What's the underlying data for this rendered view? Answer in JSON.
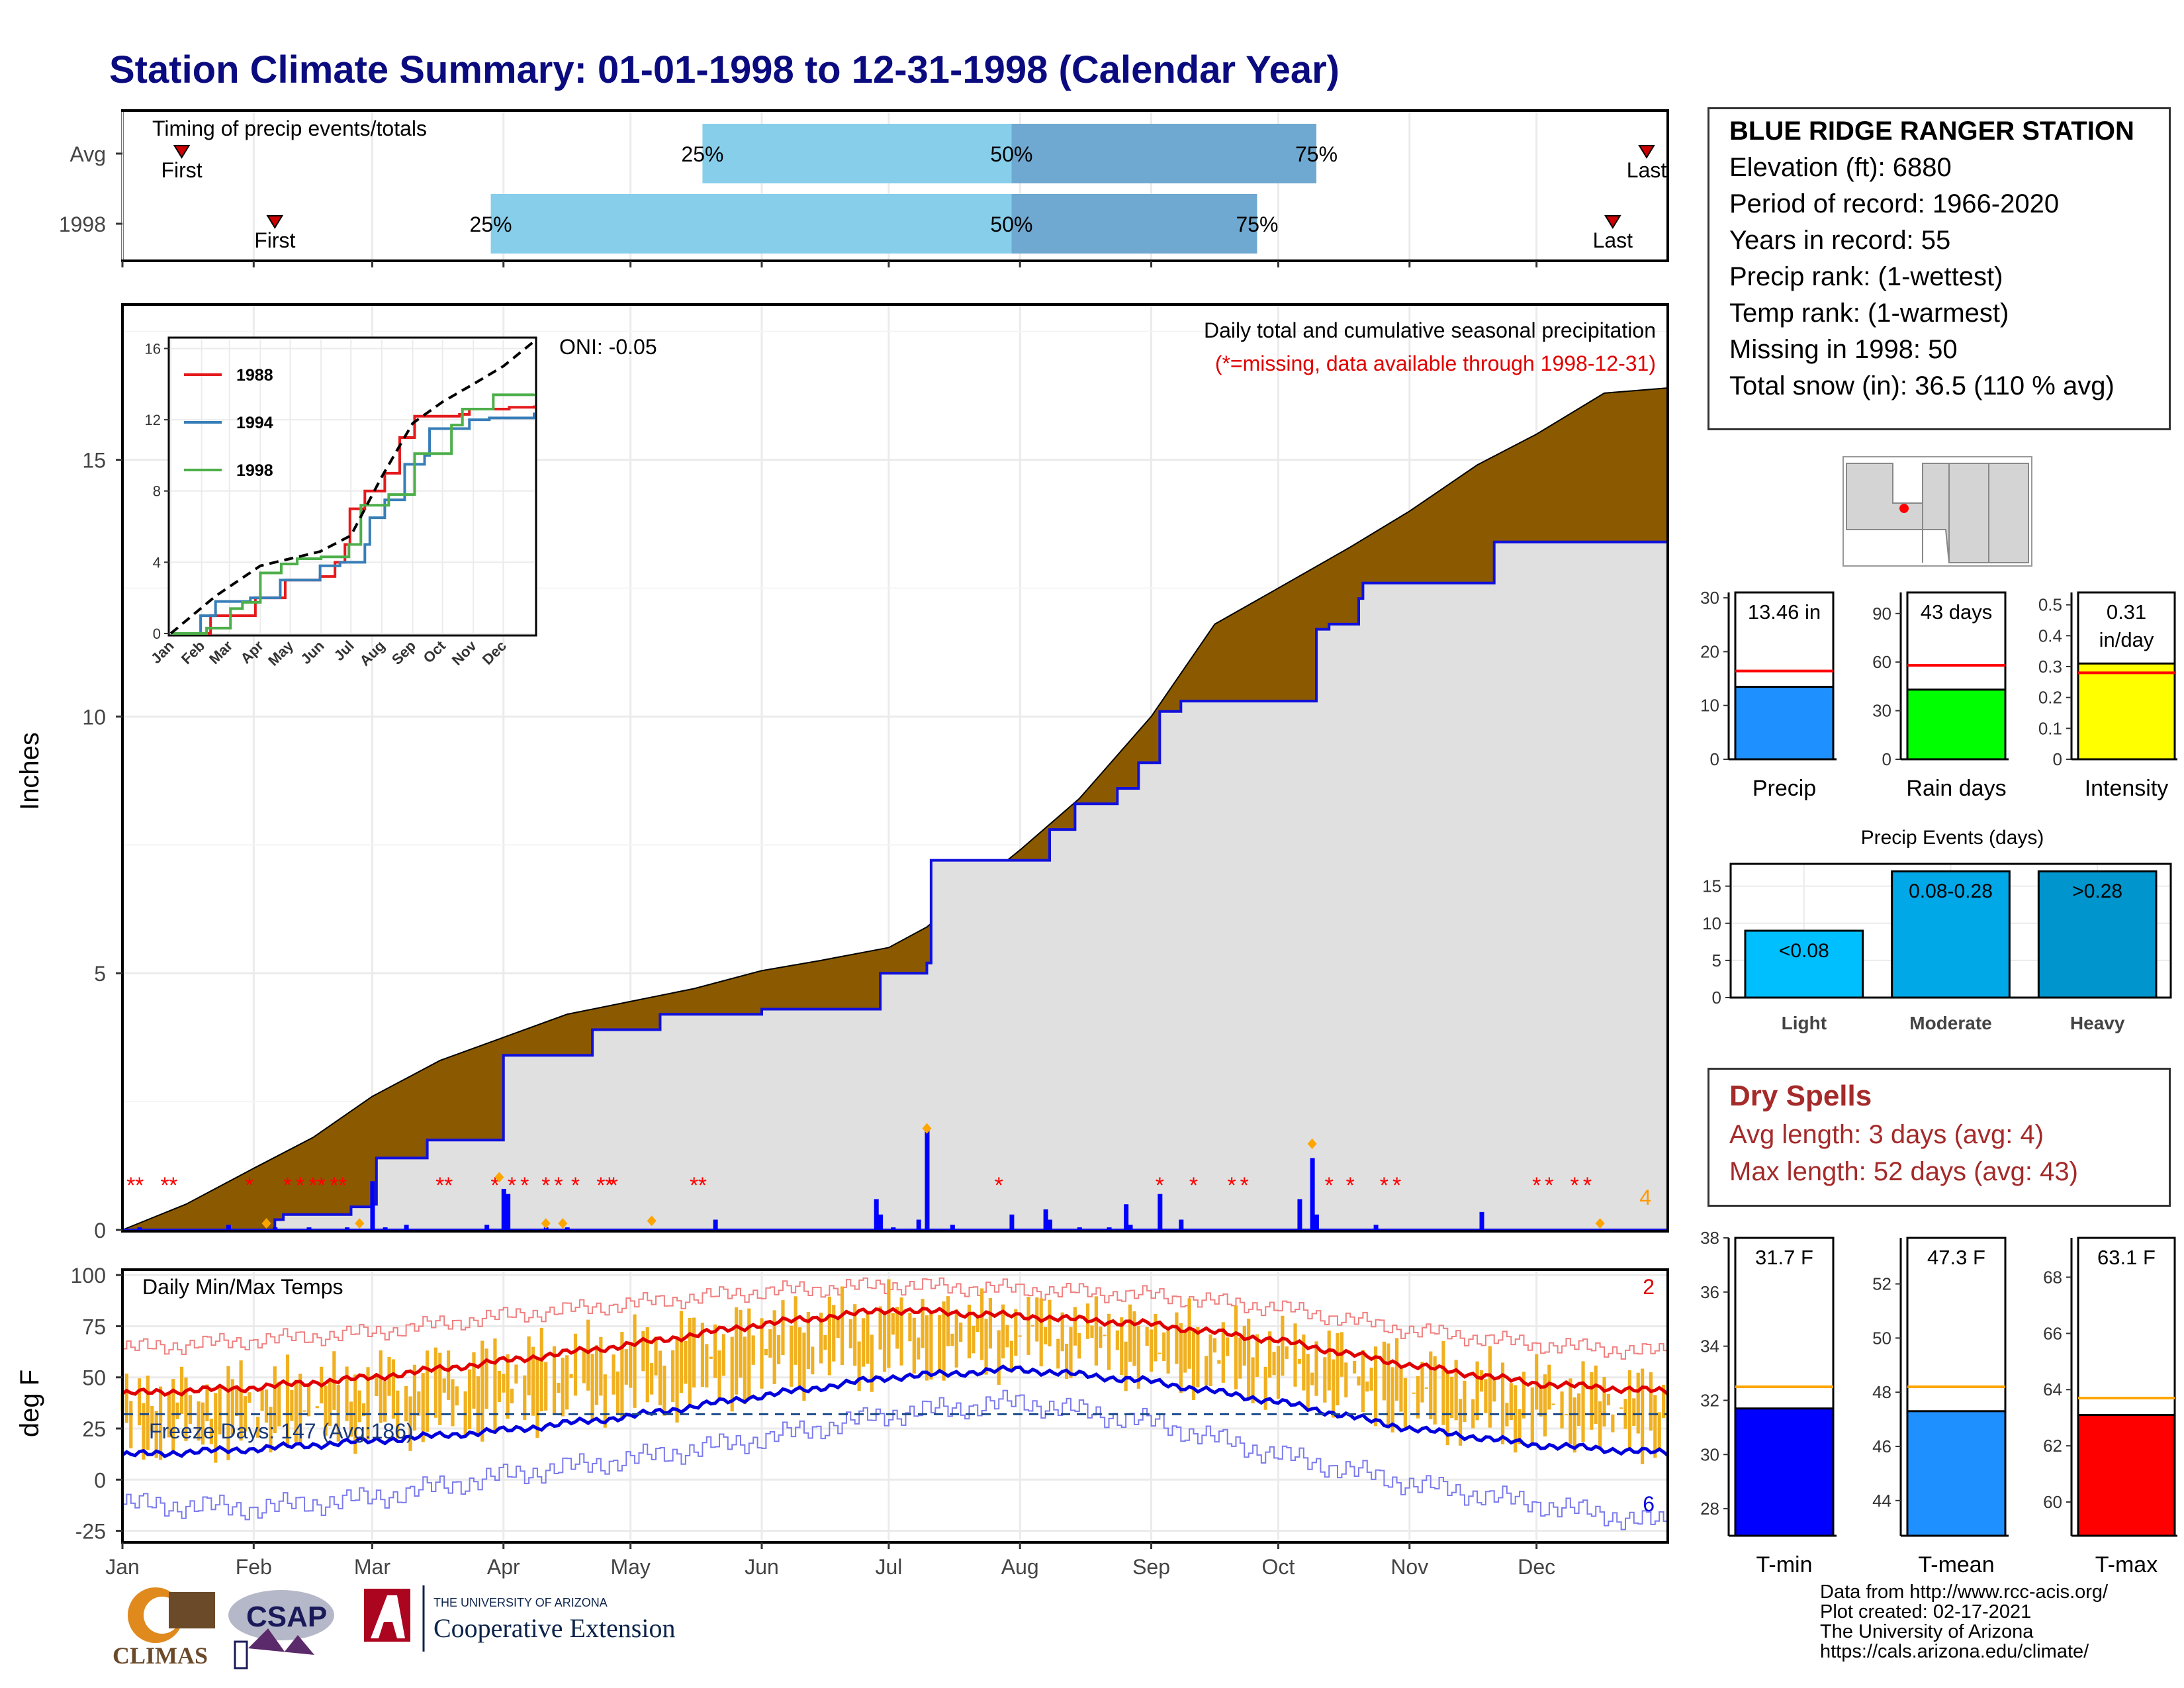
{
  "title": "Station Climate Summary: 01-01-1998 to 12-31-1998 (Calendar Year)",
  "timing": {
    "heading": "Timing of precip events/totals",
    "rows": [
      {
        "label": "Avg",
        "first_doy": 14,
        "last_doy": 360,
        "p25_doy": 137,
        "p50_doy": 210,
        "p75_doy": 282,
        "first_label": "First",
        "last_label": "Last",
        "p25_label": "25%",
        "p50_label": "50%",
        "p75_label": "75%"
      },
      {
        "label": "1998",
        "first_doy": 36,
        "last_doy": 352,
        "p25_doy": 87,
        "p50_doy": 210,
        "p75_doy": 268,
        "first_label": "First",
        "last_label": "Last",
        "p25_label": "25%",
        "p50_label": "50%",
        "p75_label": "75%"
      }
    ],
    "colors": {
      "q1": "#87ceeb",
      "q2": "#6fa8d0",
      "marker": "#cc0000"
    }
  },
  "site": {
    "name": "BLUE RIDGE RANGER STATION",
    "lines": [
      "Elevation (ft): 6880",
      "Period of record: 1966-2020",
      "Years in record: 55",
      "Precip rank:  (1-wettest)",
      "Temp rank:  (1-warmest)",
      "Missing in 1998: 50",
      "Total snow (in): 36.5 (110 % avg)"
    ]
  },
  "months": [
    "Jan",
    "Feb",
    "Mar",
    "Apr",
    "May",
    "Jun",
    "Jul",
    "Aug",
    "Sep",
    "Oct",
    "Nov",
    "Dec"
  ],
  "precip_chart": {
    "type": "area",
    "ylabel": "Inches",
    "yticks": [
      0,
      5,
      10,
      15
    ],
    "ylim": [
      0,
      18
    ],
    "note1": "Daily total and cumulative seasonal precipitation",
    "note2": "(*=missing, data available through 1998-12-31)",
    "oni": "ONI: -0.05",
    "corner_count": "4",
    "avg_cumulative": [
      [
        0,
        0
      ],
      [
        15,
        0.5
      ],
      [
        31,
        1.2
      ],
      [
        45,
        1.8
      ],
      [
        59,
        2.6
      ],
      [
        75,
        3.3
      ],
      [
        90,
        3.75
      ],
      [
        105,
        4.2
      ],
      [
        120,
        4.45
      ],
      [
        135,
        4.7
      ],
      [
        151,
        5.05
      ],
      [
        165,
        5.25
      ],
      [
        181,
        5.5
      ],
      [
        190,
        5.9
      ],
      [
        200,
        6.6
      ],
      [
        212,
        7.4
      ],
      [
        226,
        8.4
      ],
      [
        243,
        10.0
      ],
      [
        258,
        11.8
      ],
      [
        273,
        12.5
      ],
      [
        290,
        13.3
      ],
      [
        304,
        14.0
      ],
      [
        320,
        14.9
      ],
      [
        334,
        15.5
      ],
      [
        350,
        16.3
      ],
      [
        365,
        16.4
      ]
    ],
    "obs_cumulative": [
      [
        0,
        0
      ],
      [
        36,
        0.2
      ],
      [
        38,
        0.3
      ],
      [
        53,
        0.3
      ],
      [
        54,
        0.45
      ],
      [
        59,
        0.5
      ],
      [
        60,
        1.4
      ],
      [
        71,
        1.4
      ],
      [
        72,
        1.75
      ],
      [
        89,
        1.75
      ],
      [
        90,
        3.4
      ],
      [
        110,
        3.4
      ],
      [
        111,
        3.9
      ],
      [
        126,
        3.9
      ],
      [
        127,
        4.2
      ],
      [
        150,
        4.2
      ],
      [
        151,
        4.3
      ],
      [
        178,
        4.3
      ],
      [
        179,
        5.0
      ],
      [
        190,
        5.2
      ],
      [
        191,
        7.2
      ],
      [
        218,
        7.2
      ],
      [
        219,
        7.8
      ],
      [
        225,
        8.3
      ],
      [
        235,
        8.6
      ],
      [
        240,
        9.1
      ],
      [
        245,
        10.1
      ],
      [
        250,
        10.3
      ],
      [
        281,
        10.3
      ],
      [
        282,
        11.7
      ],
      [
        285,
        11.8
      ],
      [
        292,
        12.3
      ],
      [
        293,
        12.6
      ],
      [
        323,
        12.6
      ],
      [
        324,
        13.4
      ],
      [
        365,
        13.46
      ]
    ],
    "daily_bars": [
      [
        4,
        0.05
      ],
      [
        25,
        0.1
      ],
      [
        36,
        0.05
      ],
      [
        44,
        0.05
      ],
      [
        53,
        0.05
      ],
      [
        59,
        0.95
      ],
      [
        62,
        0.05
      ],
      [
        67,
        0.1
      ],
      [
        86,
        0.1
      ],
      [
        90,
        0.8
      ],
      [
        91,
        0.7
      ],
      [
        100,
        0.05
      ],
      [
        105,
        0.05
      ],
      [
        140,
        0.2
      ],
      [
        178,
        0.6
      ],
      [
        179,
        0.3
      ],
      [
        182,
        0.05
      ],
      [
        188,
        0.2
      ],
      [
        190,
        2.0
      ],
      [
        196,
        0.1
      ],
      [
        210,
        0.3
      ],
      [
        218,
        0.4
      ],
      [
        219,
        0.2
      ],
      [
        226,
        0.05
      ],
      [
        233,
        0.05
      ],
      [
        237,
        0.5
      ],
      [
        238,
        0.1
      ],
      [
        245,
        0.7
      ],
      [
        250,
        0.2
      ],
      [
        278,
        0.6
      ],
      [
        281,
        1.4
      ],
      [
        282,
        0.3
      ],
      [
        296,
        0.1
      ],
      [
        321,
        0.35
      ]
    ],
    "missing_days": [
      2,
      4,
      10,
      12,
      30,
      39,
      42,
      45,
      47,
      50,
      52,
      75,
      77,
      88,
      92,
      95,
      100,
      103,
      107,
      113,
      115,
      116,
      135,
      137,
      207,
      245,
      253,
      262,
      265,
      285,
      290,
      298,
      301,
      334,
      337,
      343,
      346
    ],
    "snow_markers": [
      [
        34,
        0.05
      ],
      [
        56,
        0.05
      ],
      [
        89,
        0.95
      ],
      [
        100,
        0.05
      ],
      [
        104,
        0.05
      ],
      [
        125,
        0.1
      ],
      [
        190,
        1.9
      ],
      [
        281,
        1.6
      ],
      [
        349,
        0.05
      ]
    ],
    "inset": {
      "yticks": [
        0,
        4,
        8,
        12,
        16
      ],
      "series": [
        {
          "name": "1988",
          "color": "#e41a1c",
          "values": [
            [
              0,
              0
            ],
            [
              40,
              1
            ],
            [
              75,
              1
            ],
            [
              85,
              2
            ],
            [
              115,
              3
            ],
            [
              150,
              3.2
            ],
            [
              165,
              4
            ],
            [
              175,
              5
            ],
            [
              180,
              7
            ],
            [
              195,
              8
            ],
            [
              215,
              9
            ],
            [
              230,
              11
            ],
            [
              245,
              12.2
            ],
            [
              290,
              12.3
            ],
            [
              300,
              12.6
            ],
            [
              340,
              12.7
            ],
            [
              365,
              12.8
            ]
          ]
        },
        {
          "name": "1994",
          "color": "#377eb8",
          "values": [
            [
              0,
              0
            ],
            [
              30,
              1
            ],
            [
              45,
              1.8
            ],
            [
              80,
              2
            ],
            [
              110,
              3
            ],
            [
              150,
              3.8
            ],
            [
              170,
              4
            ],
            [
              195,
              5
            ],
            [
              200,
              6.5
            ],
            [
              215,
              7.5
            ],
            [
              235,
              9.5
            ],
            [
              255,
              10
            ],
            [
              260,
              11.5
            ],
            [
              300,
              12
            ],
            [
              320,
              12.1
            ],
            [
              365,
              12.4
            ]
          ]
        },
        {
          "name": "1998",
          "color": "#4daf4a",
          "values": [
            [
              0,
              0
            ],
            [
              36,
              0.3
            ],
            [
              60,
              1.4
            ],
            [
              72,
              1.75
            ],
            [
              90,
              3.4
            ],
            [
              111,
              3.9
            ],
            [
              127,
              4.2
            ],
            [
              151,
              4.3
            ],
            [
              179,
              5
            ],
            [
              191,
              7.2
            ],
            [
              219,
              7.8
            ],
            [
              245,
              10.1
            ],
            [
              282,
              11.7
            ],
            [
              293,
              12.6
            ],
            [
              324,
              13.4
            ],
            [
              365,
              13.46
            ]
          ]
        }
      ],
      "avg_values": [
        [
          0,
          0
        ],
        [
          45,
          2.1
        ],
        [
          90,
          3.8
        ],
        [
          150,
          4.6
        ],
        [
          181,
          5.5
        ],
        [
          212,
          8.8
        ],
        [
          243,
          11.8
        ],
        [
          273,
          13
        ],
        [
          304,
          14
        ],
        [
          334,
          15
        ],
        [
          365,
          16.4
        ]
      ]
    }
  },
  "temp_chart": {
    "type": "line",
    "ylabel": "deg F",
    "label": "Daily Min/Max Temps",
    "yticks": [
      -25,
      0,
      25,
      50,
      75,
      100
    ],
    "ylim": [
      -30,
      102
    ],
    "freeze_label": "Freeze Days: 147 (Avg:186)",
    "freeze_line": 32,
    "record_high_count": "2",
    "record_low_count": "6",
    "avg_max_pts": [
      [
        0,
        42
      ],
      [
        31,
        45
      ],
      [
        59,
        50
      ],
      [
        90,
        58
      ],
      [
        120,
        66
      ],
      [
        151,
        76
      ],
      [
        181,
        83
      ],
      [
        212,
        80
      ],
      [
        243,
        76
      ],
      [
        273,
        68
      ],
      [
        304,
        56
      ],
      [
        334,
        47
      ],
      [
        365,
        43
      ]
    ],
    "avg_min_pts": [
      [
        0,
        12
      ],
      [
        31,
        15
      ],
      [
        59,
        19
      ],
      [
        90,
        24
      ],
      [
        120,
        31
      ],
      [
        151,
        41
      ],
      [
        181,
        50
      ],
      [
        212,
        54
      ],
      [
        243,
        48
      ],
      [
        273,
        38
      ],
      [
        304,
        25
      ],
      [
        334,
        17
      ],
      [
        365,
        13
      ]
    ],
    "rec_max_pts": [
      [
        0,
        64
      ],
      [
        31,
        68
      ],
      [
        59,
        72
      ],
      [
        90,
        80
      ],
      [
        120,
        86
      ],
      [
        151,
        92
      ],
      [
        181,
        95
      ],
      [
        212,
        93
      ],
      [
        243,
        90
      ],
      [
        273,
        84
      ],
      [
        304,
        73
      ],
      [
        334,
        66
      ],
      [
        365,
        62
      ]
    ],
    "rec_min_pts": [
      [
        0,
        -12
      ],
      [
        31,
        -14
      ],
      [
        59,
        -9
      ],
      [
        90,
        2
      ],
      [
        120,
        10
      ],
      [
        151,
        20
      ],
      [
        181,
        32
      ],
      [
        212,
        38
      ],
      [
        243,
        28
      ],
      [
        273,
        12
      ],
      [
        304,
        -2
      ],
      [
        334,
        -12
      ],
      [
        365,
        -22
      ]
    ]
  },
  "small_bars": {
    "precip": {
      "label": "Precip",
      "value": 13.46,
      "value_label": "13.46 in",
      "avg": 16.4,
      "yticks": [
        0,
        10,
        20,
        30
      ],
      "ylim": [
        0,
        31
      ],
      "color": "#1e90ff"
    },
    "raindays": {
      "label": "Rain days",
      "value": 43,
      "value_label": "43 days",
      "avg": 58,
      "yticks": [
        0,
        30,
        60,
        90
      ],
      "ylim": [
        0,
        103
      ],
      "color": "#00ff00"
    },
    "intensity": {
      "label": "Intensity",
      "value": 0.31,
      "value_label": "0.31",
      "value_unit": "in/day",
      "avg": 0.28,
      "yticks": [
        0.0,
        0.1,
        0.2,
        0.3,
        0.4,
        0.5
      ],
      "ylim": [
        0,
        0.54
      ],
      "color": "#ffff00"
    }
  },
  "events": {
    "title": "Precip Events (days)",
    "yticks": [
      0,
      5,
      10,
      15
    ],
    "ylim": [
      0,
      18
    ],
    "categories": [
      "Light",
      "Moderate",
      "Heavy"
    ],
    "values": [
      9,
      17,
      17
    ],
    "value_labels": [
      "<0.08",
      "0.08-0.28",
      ">0.28"
    ],
    "colors": [
      "#00bfff",
      "#00a8e8",
      "#0095cc"
    ]
  },
  "dry_spells": {
    "title": "Dry Spells",
    "avg_length": "Avg length: 3 days (avg: 4)",
    "max_length": "Max length: 52 days (avg: 43)"
  },
  "temp_bars": {
    "tmin": {
      "label": "T-min",
      "value": 31.7,
      "value_label": "31.7 F",
      "avg": 32.5,
      "yticks": [
        28,
        30,
        32,
        34,
        36,
        38
      ],
      "ylim": [
        27,
        38
      ],
      "color": "#0000ff"
    },
    "tmean": {
      "label": "T-mean",
      "value": 47.3,
      "value_label": "47.3 F",
      "avg": 48.2,
      "yticks": [
        44,
        46,
        48,
        50,
        52
      ],
      "ylim": [
        42.7,
        53.7
      ],
      "color": "#1e90ff"
    },
    "tmax": {
      "label": "T-max",
      "value": 63.1,
      "value_label": "63.1 F",
      "avg": 63.7,
      "yticks": [
        60,
        62,
        64,
        66,
        68
      ],
      "ylim": [
        58.8,
        69.4
      ],
      "color": "#ff0000"
    }
  },
  "credits": [
    "Data from http://www.rcc-acis.org/",
    "Plot created: 02-17-2021",
    "The University of Arizona",
    "https://cals.arizona.edu/climate/"
  ],
  "logos": {
    "climas": "CLIMAS",
    "csap": "CSAP",
    "ua_small": "THE UNIVERSITY OF ARIZONA",
    "ua_big": "Cooperative Extension"
  }
}
